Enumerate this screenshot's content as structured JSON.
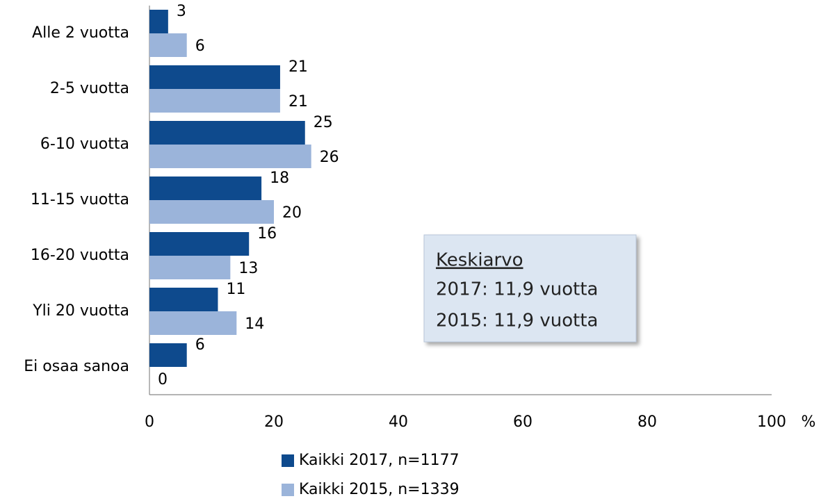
{
  "chart_data": {
    "type": "hbar",
    "categories": [
      "Alle 2 vuotta",
      "2-5 vuotta",
      "6-10 vuotta",
      "11-15 vuotta",
      "16-20 vuotta",
      "Yli 20 vuotta",
      "Ei osaa sanoa"
    ],
    "series": [
      {
        "name": "Kaikki 2017, n=1177",
        "color": "#0e4a8d",
        "values": [
          3,
          21,
          25,
          18,
          16,
          11,
          6
        ]
      },
      {
        "name": "Kaikki 2015, n=1339",
        "color": "#9bb4da",
        "values": [
          6,
          21,
          26,
          20,
          13,
          14,
          0
        ]
      }
    ],
    "xlim": [
      0,
      100
    ],
    "xticks": [
      0,
      20,
      40,
      60,
      80,
      100
    ],
    "x_label": "%",
    "legend": "bottom",
    "annotation": {
      "title": "Keskiarvo",
      "lines": [
        "2017: 11,9 vuotta",
        "2015: 11,9 vuotta"
      ]
    }
  }
}
